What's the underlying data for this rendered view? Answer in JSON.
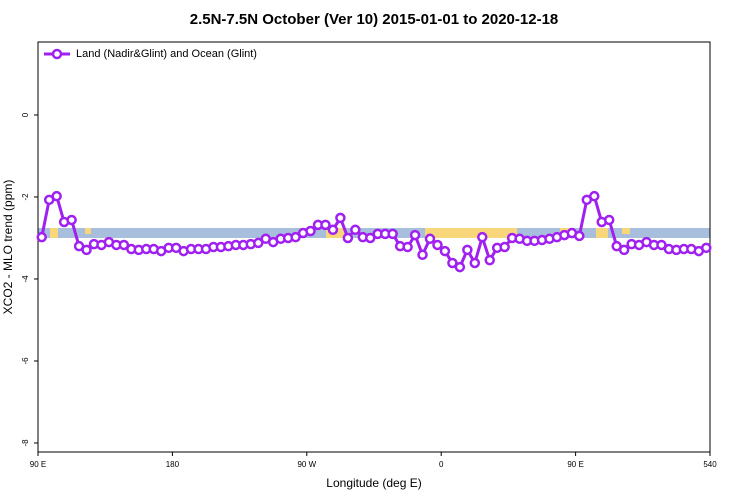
{
  "chart_data": {
    "type": "line",
    "title": "2.5N-7.5N October (Ver 10)   2015-01-01 to 2020-12-18",
    "x_label": "Longitude (deg E)",
    "y_label": "XCO2 - MLO trend (ppm)",
    "x": [
      92.5,
      97.5,
      102.5,
      107.5,
      112.5,
      117.5,
      122.5,
      127.5,
      132.5,
      137.5,
      142.5,
      147.5,
      152.5,
      157.5,
      162.5,
      167.5,
      172.5,
      177.5,
      182.5,
      187.5,
      192.5,
      197.5,
      202.5,
      207.5,
      212.5,
      217.5,
      222.5,
      227.5,
      232.5,
      237.5,
      242.5,
      247.5,
      252.5,
      257.5,
      262.5,
      267.5,
      272.5,
      277.5,
      282.5,
      287.5,
      292.5,
      297.5,
      302.5,
      307.5,
      312.5,
      317.5,
      322.5,
      327.5,
      332.5,
      337.5,
      342.5,
      347.5,
      352.5,
      357.5,
      362.5,
      367.5,
      372.5,
      377.5,
      382.5,
      387.5,
      392.5,
      397.5,
      402.5,
      407.5,
      412.5,
      417.5,
      422.5,
      427.5,
      432.5,
      437.5,
      442.5,
      447.5,
      452.5,
      457.5,
      462.5,
      467.5,
      472.5,
      477.5,
      482.5,
      487.5,
      492.5,
      497.5,
      502.5,
      507.5,
      512.5,
      517.5,
      522.5,
      527.5,
      532.5,
      537.5
    ],
    "series": [
      {
        "name": "Land (Nadir&Glint) and Ocean (Glint)",
        "color": "#a020f0",
        "values": [
          -2.98,
          -2.07,
          -1.98,
          -2.61,
          -2.56,
          -3.2,
          -3.29,
          -3.15,
          -3.17,
          -3.1,
          -3.17,
          -3.17,
          -3.27,
          -3.29,
          -3.27,
          -3.27,
          -3.32,
          -3.24,
          -3.24,
          -3.32,
          -3.27,
          -3.27,
          -3.27,
          -3.22,
          -3.22,
          -3.2,
          -3.17,
          -3.17,
          -3.15,
          -3.12,
          -3.02,
          -3.1,
          -3.02,
          -3.0,
          -2.98,
          -2.88,
          -2.83,
          -2.68,
          -2.68,
          -2.8,
          -2.51,
          -3.0,
          -2.8,
          -2.98,
          -3.0,
          -2.9,
          -2.9,
          -2.9,
          -3.2,
          -3.22,
          -2.93,
          -3.41,
          -3.02,
          -3.17,
          -3.32,
          -3.61,
          -3.71,
          -3.29,
          -3.61,
          -2.98,
          -3.54,
          -3.24,
          -3.22,
          -3.0,
          -3.02,
          -3.07,
          -3.07,
          -3.05,
          -3.02,
          -2.98,
          -2.93,
          -2.88,
          -2.95,
          -2.07,
          -1.98,
          -2.61,
          -2.56,
          -3.2,
          -3.29,
          -3.15,
          -3.17,
          -3.1,
          -3.17,
          -3.17,
          -3.27,
          -3.29,
          -3.27,
          -3.27,
          -3.32,
          -3.24
        ]
      }
    ],
    "xlim": [
      90,
      540
    ],
    "xticks": [
      {
        "value": 90,
        "label": "90 E"
      },
      180,
      {
        "value": 270,
        "label": "90 W"
      },
      {
        "value": 360,
        "label": "0"
      },
      {
        "value": 450,
        "label": "90 E"
      },
      540
    ],
    "ylim": [
      -8.22,
      1.78
    ],
    "yticks": [
      0,
      -2,
      -4,
      -6,
      -8
    ],
    "legend": "top-left"
  }
}
